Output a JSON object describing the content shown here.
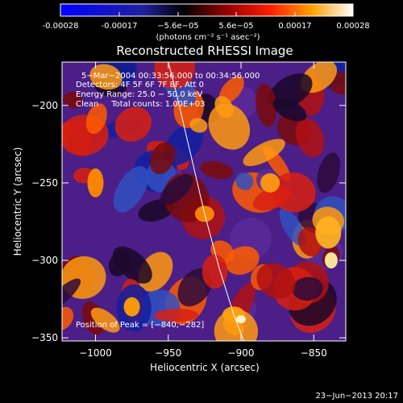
{
  "colorbar": {
    "ticks": [
      "-0.00028",
      "-0.00017",
      "−5.6e−05",
      "5.6e−05",
      "0.00017",
      "0.00028"
    ],
    "unit_label": "(photons cm⁻² s⁻¹ asec⁻²)",
    "gradient": [
      "#0000ff",
      "#000000",
      "#ff0000",
      "#ffa000",
      "#ffffff"
    ]
  },
  "chart_data": {
    "type": "heatmap",
    "title": "Reconstructed RHESSI Image",
    "xlabel": "Heliocentric X (arcsec)",
    "ylabel": "Heliocentric Y (arcsec)",
    "xlim": [
      -1023,
      -828
    ],
    "ylim": [
      -352,
      -172
    ],
    "xticks": [
      -1000,
      -950,
      -900,
      -850
    ],
    "yticks": [
      -350,
      -300,
      -250,
      -200
    ],
    "limb_curve": {
      "x": [
        -950,
        -945,
        -935,
        -925,
        -915,
        -905,
        -898
      ],
      "y": [
        -172,
        -190,
        -230,
        -270,
        -305,
        -335,
        -352
      ]
    },
    "peak": {
      "x": -840,
      "y": -282
    }
  },
  "info": {
    "line1": "5−Mar−2004 00:33:56.000 to 00:34:56.000",
    "line2": "Detectors: 4F 5F 6F 7F 8F, Att 0",
    "line3": "Energy Range: 25.0 − 50.0 keV",
    "line4": "Clean     Total counts: 1.00E+03",
    "peak_text": "Position of Peak = [−840,−282]"
  },
  "footer": {
    "timestamp": "23−Jun−2013 20:17"
  }
}
